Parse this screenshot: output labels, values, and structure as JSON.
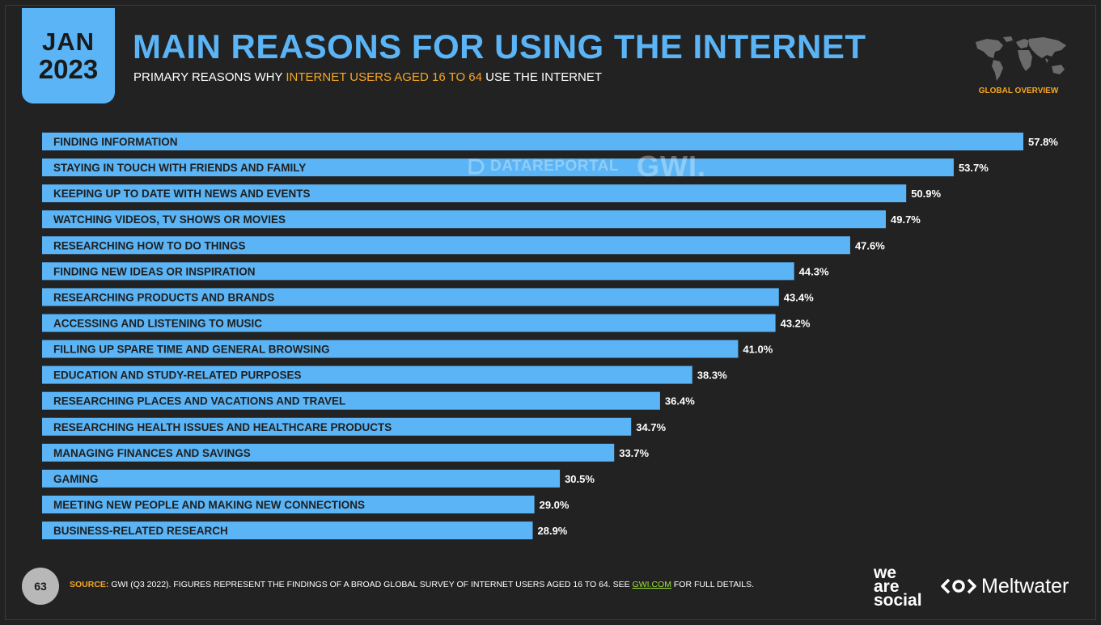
{
  "header": {
    "month": "JAN",
    "year": "2023",
    "title": "MAIN REASONS FOR USING THE INTERNET",
    "subtitle_pre": "PRIMARY REASONS WHY ",
    "subtitle_highlight": "INTERNET USERS AGED 16 TO 64",
    "subtitle_post": " USE THE INTERNET",
    "region_label": "GLOBAL OVERVIEW"
  },
  "watermark": {
    "left": "DATAREPORTAL",
    "right": "GWI."
  },
  "footer": {
    "page_number": "63",
    "source_label": "SOURCE:",
    "source_text": " GWI (Q3 2022). FIGURES REPRESENT THE FINDINGS OF A BROAD GLOBAL SURVEY OF INTERNET USERS AGED 16 TO 64. SEE ",
    "source_link": "GWI.COM",
    "source_tail": " FOR FULL DETAILS.",
    "brand_was": [
      "we",
      "are",
      "social"
    ],
    "brand_meltwater": "Meltwater"
  },
  "colors": {
    "bar": "#5ab4f5",
    "accent": "#f5a623",
    "link": "#9be33b",
    "background": "#222222"
  },
  "chart_data": {
    "type": "bar",
    "orientation": "horizontal",
    "title": "MAIN REASONS FOR USING THE INTERNET",
    "unit": "%",
    "xlim": [
      0,
      57.8
    ],
    "grid": false,
    "categories": [
      "FINDING INFORMATION",
      "STAYING IN TOUCH WITH FRIENDS AND FAMILY",
      "KEEPING UP TO DATE WITH NEWS AND EVENTS",
      "WATCHING VIDEOS, TV SHOWS OR MOVIES",
      "RESEARCHING HOW TO DO THINGS",
      "FINDING NEW IDEAS OR INSPIRATION",
      "RESEARCHING PRODUCTS AND BRANDS",
      "ACCESSING AND LISTENING TO MUSIC",
      "FILLING UP SPARE TIME AND GENERAL BROWSING",
      "EDUCATION AND STUDY-RELATED PURPOSES",
      "RESEARCHING PLACES AND VACATIONS AND TRAVEL",
      "RESEARCHING HEALTH ISSUES AND HEALTHCARE PRODUCTS",
      "MANAGING FINANCES AND SAVINGS",
      "GAMING",
      "MEETING NEW PEOPLE AND MAKING NEW CONNECTIONS",
      "BUSINESS-RELATED RESEARCH"
    ],
    "values": [
      57.8,
      53.7,
      50.9,
      49.7,
      47.6,
      44.3,
      43.4,
      43.2,
      41.0,
      38.3,
      36.4,
      34.7,
      33.7,
      30.5,
      29.0,
      28.9
    ],
    "value_labels": [
      "57.8%",
      "53.7%",
      "50.9%",
      "49.7%",
      "47.6%",
      "44.3%",
      "43.4%",
      "43.2%",
      "41.0%",
      "38.3%",
      "36.4%",
      "34.7%",
      "33.7%",
      "30.5%",
      "29.0%",
      "28.9%"
    ]
  }
}
